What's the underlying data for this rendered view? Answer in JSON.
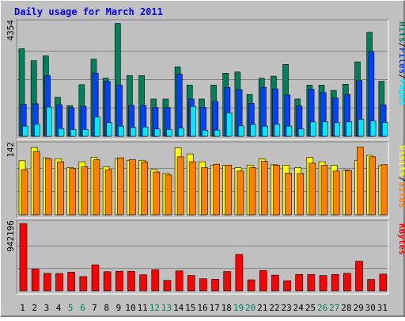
{
  "chart_data": {
    "type": "bar",
    "title": "Daily usage for March 2011",
    "categories": [
      "1",
      "2",
      "3",
      "4",
      "5",
      "6",
      "7",
      "8",
      "9",
      "10",
      "11",
      "12",
      "13",
      "14",
      "15",
      "16",
      "17",
      "18",
      "19",
      "20",
      "21",
      "22",
      "23",
      "24",
      "25",
      "26",
      "27",
      "28",
      "29",
      "30",
      "31"
    ],
    "weekend_days": [
      5,
      6,
      12,
      13,
      19,
      20,
      26,
      27
    ],
    "panels": [
      {
        "name": "hits-files-pages",
        "ymax_label": "4354",
        "ylim": [
          0,
          4354
        ],
        "legend": [
          {
            "label": "Pages",
            "color": "#00e8ff"
          },
          {
            "label": "/",
            "color": "#000000"
          },
          {
            "label": "Files",
            "color": "#0040ff"
          },
          {
            "label": "/",
            "color": "#000000"
          },
          {
            "label": "Hits",
            "color": "#00805c"
          }
        ],
        "series": [
          {
            "name": "Hits",
            "color": "#00805c",
            "values": [
              3364,
              2905,
              3092,
              1499,
              1177,
              1982,
              2966,
              2236,
              4336,
              2330,
              2330,
              1432,
              1432,
              2669,
              1968,
              1432,
              1968,
              2427,
              2472,
              1607,
              2232,
              2311,
              2762,
              1432,
              1968,
              1968,
              1762,
              2000,
              2860,
              4000,
              2110
            ]
          },
          {
            "name": "Files",
            "color": "#0040ff",
            "values": [
              1229,
              1253,
              2331,
              1215,
              1100,
              1153,
              2428,
              2106,
              1968,
              1185,
              1185,
              1105,
              1105,
              2385,
              1430,
              1115,
              1340,
              1875,
              1795,
              1268,
              1880,
              1823,
              1585,
              1166,
              1807,
              1680,
              1476,
              1602,
              2142,
              3253,
              1210
            ]
          },
          {
            "name": "Pages",
            "color": "#00e8ff",
            "values": [
              390,
              460,
              1125,
              300,
              265,
              265,
              740,
              526,
              390,
              340,
              360,
              285,
              265,
              320,
              1150,
              235,
              240,
              900,
              400,
              455,
              390,
              460,
              390,
              285,
              555,
              555,
              525,
              555,
              655,
              590,
              530
            ]
          }
        ]
      },
      {
        "name": "visits-sites",
        "ymax_label": "142",
        "ylim": [
          0,
          142
        ],
        "legend": [
          {
            "label": "Sites",
            "color": "#ff8000"
          },
          {
            "label": "/",
            "color": "#000000"
          },
          {
            "label": "Visits",
            "color": "#ffff00"
          }
        ],
        "series": [
          {
            "name": "Visits",
            "color": "#ffff00",
            "values": [
              110,
              137,
              116,
              114,
              96,
              108,
              117,
              98,
              114,
              111,
              111,
              92,
              84,
              136,
              124,
              108,
              101,
              101,
              96,
              101,
              114,
              102,
              101,
              96,
              117,
              108,
              101,
              91,
              111,
              121,
              100
            ]
          },
          {
            "name": "Sites",
            "color": "#ff8000",
            "values": [
              92,
              129,
              114,
              108,
              94,
              98,
              112,
              92,
              116,
              112,
              108,
              87,
              81,
              118,
              108,
              96,
              103,
              101,
              89,
              96,
              109,
              101,
              85,
              84,
              105,
              101,
              89,
              90,
              138,
              118,
              102
            ]
          }
        ]
      },
      {
        "name": "kbytes",
        "ymax_label": "942196",
        "ylim": [
          0,
          942196
        ],
        "legend": [
          {
            "label": "KBytes",
            "color": "#ff0000"
          }
        ],
        "series": [
          {
            "name": "KBytes",
            "color": "#ff0000",
            "values": [
              942196,
              305000,
              245000,
              242000,
              262000,
              200000,
              365000,
              268000,
              275000,
              275000,
              225000,
              295000,
              148000,
              280000,
              215000,
              170000,
              162000,
              270000,
              510000,
              155000,
              285000,
              220000,
              142000,
              230000,
              230000,
              215000,
              230000,
              245000,
              415000,
              160000,
              235000
            ]
          }
        ]
      }
    ],
    "colors": {
      "background": "#c0c0c0",
      "plot": "#c0c0c0",
      "title": "#0000ff",
      "grid": "#808080",
      "weekday_label": "#000000",
      "weekend_label": "#00805c"
    }
  }
}
